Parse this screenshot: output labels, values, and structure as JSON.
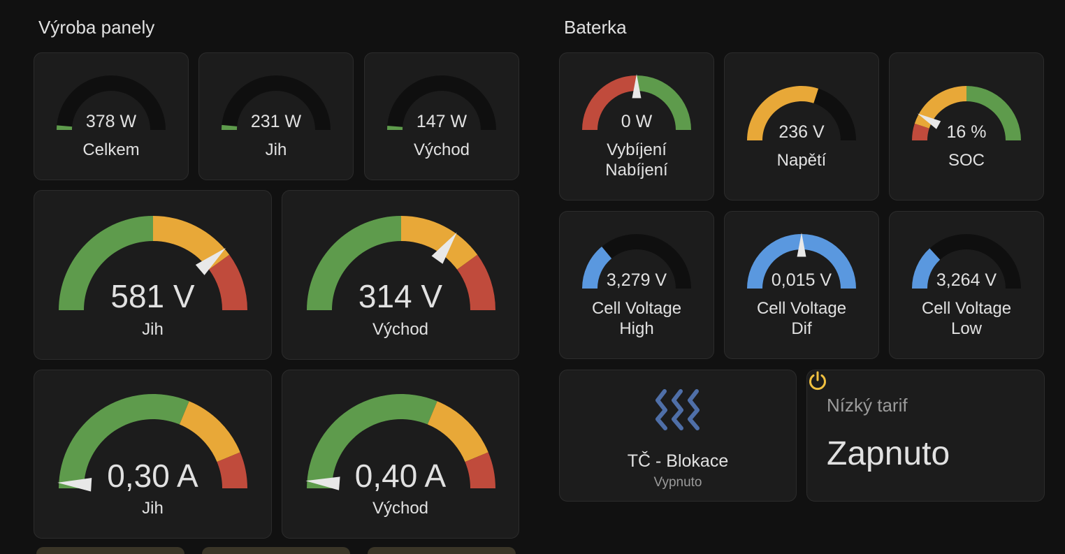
{
  "sections": {
    "panels_title": "Výroba panely",
    "battery_title": "Baterka"
  },
  "colors": {
    "green": "#5e9b4c",
    "yellow": "#e8a838",
    "red": "#c04b3c",
    "blue": "#5a98df",
    "track": "#0f0f0f",
    "needle": "#e8e8e8",
    "accent": "#f0c040",
    "icon": "#4f6fa8"
  },
  "gauges": [
    {
      "id": "celkem",
      "value_text": "378 W",
      "name": [
        "Celkem"
      ],
      "value": 378,
      "min": 0,
      "max": 14000,
      "mode": "fill",
      "fill_color": "green"
    },
    {
      "id": "jih-w",
      "value_text": "231 W",
      "name": [
        "Jih"
      ],
      "value": 231,
      "min": 0,
      "max": 8000,
      "mode": "fill",
      "fill_color": "green"
    },
    {
      "id": "vychod-w",
      "value_text": "147 W",
      "name": [
        "Východ"
      ],
      "value": 147,
      "min": 0,
      "max": 6000,
      "mode": "fill",
      "fill_color": "green"
    },
    {
      "id": "vybijeni",
      "value_text": "0 W",
      "name": [
        "Vybíjení",
        "Nabíjení"
      ],
      "value": 0,
      "min": -10000,
      "max": 10000,
      "mode": "needle",
      "segments": [
        [
          "red",
          -10000
        ],
        [
          "green",
          0
        ]
      ]
    },
    {
      "id": "napeti",
      "value_text": "236 V",
      "name": [
        "Napětí"
      ],
      "value": 236,
      "min": 200,
      "max": 260,
      "mode": "fill",
      "fill_color": "yellow"
    },
    {
      "id": "soc",
      "value_text": "16 %",
      "name": [
        "SOC"
      ],
      "value": 16,
      "min": 0,
      "max": 100,
      "mode": "needle",
      "segments": [
        [
          "red",
          0
        ],
        [
          "yellow",
          10
        ],
        [
          "green",
          50
        ]
      ]
    },
    {
      "id": "cell-high",
      "value_text": "3,279 V",
      "name": [
        "Cell Voltage",
        "High"
      ],
      "value": 3.279,
      "min": 3.0,
      "max": 4.0,
      "mode": "fill",
      "fill_color": "blue"
    },
    {
      "id": "cell-dif",
      "value_text": "0,015 V",
      "name": [
        "Cell Voltage",
        "Dif"
      ],
      "value": 0.015,
      "min": 0,
      "max": 0.03,
      "mode": "needle",
      "segments": [
        [
          "blue",
          0
        ]
      ]
    },
    {
      "id": "cell-low",
      "value_text": "3,264 V",
      "name": [
        "Cell Voltage",
        "Low"
      ],
      "value": 3.264,
      "min": 3.0,
      "max": 4.0,
      "mode": "fill",
      "fill_color": "blue"
    },
    {
      "id": "jih-v",
      "value_text": "581 V",
      "name": [
        "Jih"
      ],
      "value": 581,
      "min": 0,
      "max": 750,
      "mode": "needle",
      "segments": [
        [
          "green",
          0
        ],
        [
          "yellow",
          375
        ],
        [
          "red",
          600
        ]
      ]
    },
    {
      "id": "vychod-v",
      "value_text": "314 V",
      "name": [
        "Východ"
      ],
      "value": 314,
      "min": 0,
      "max": 450,
      "mode": "needle",
      "segments": [
        [
          "green",
          0
        ],
        [
          "yellow",
          225
        ],
        [
          "red",
          360
        ]
      ]
    },
    {
      "id": "jih-a",
      "value_text": "0,30 A",
      "name": [
        "Jih"
      ],
      "value": 0.3,
      "min": 0,
      "max": 16,
      "mode": "needle",
      "segments": [
        [
          "green",
          0
        ],
        [
          "yellow",
          10
        ],
        [
          "red",
          14
        ]
      ]
    },
    {
      "id": "vychod-a",
      "value_text": "0,40 A",
      "name": [
        "Východ"
      ],
      "value": 0.4,
      "min": 0,
      "max": 16,
      "mode": "needle",
      "segments": [
        [
          "green",
          0
        ],
        [
          "yellow",
          10
        ],
        [
          "red",
          14
        ]
      ]
    }
  ],
  "tiles": {
    "tc": {
      "name": "TČ - Blokace",
      "state": "Vypnuto",
      "icon": "heat-wave-icon"
    },
    "tariff": {
      "label": "Nízký tarif",
      "state": "Zapnuto",
      "icon": "power-icon"
    }
  }
}
